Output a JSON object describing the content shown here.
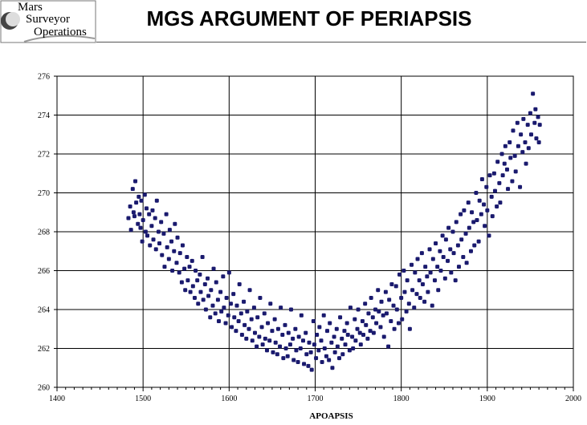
{
  "logo": {
    "line1": "Mars",
    "line2": "Surveyor",
    "line3": "Operations"
  },
  "title": "MGS ARGUMENT OF PERIAPSIS",
  "chart_data": {
    "type": "scatter",
    "title": "MGS ARGUMENT OF PERIAPSIS",
    "xlabel": "APOAPSIS",
    "ylabel": "",
    "xlim": [
      1400,
      2000
    ],
    "ylim": [
      260,
      276
    ],
    "x_ticks": [
      1400,
      1500,
      1600,
      1700,
      1800,
      1900,
      2000
    ],
    "y_ticks": [
      260,
      262,
      264,
      266,
      268,
      270,
      272,
      274,
      276
    ],
    "grid": true,
    "marker_color": "#1a1a6e",
    "points": [
      [
        1483,
        268.7
      ],
      [
        1485,
        269.3
      ],
      [
        1486,
        268.1
      ],
      [
        1488,
        270.2
      ],
      [
        1489,
        269.0
      ],
      [
        1490,
        268.8
      ],
      [
        1491,
        270.6
      ],
      [
        1492,
        269.5
      ],
      [
        1494,
        268.4
      ],
      [
        1495,
        269.8
      ],
      [
        1496,
        268.9
      ],
      [
        1497,
        268.2
      ],
      [
        1498,
        269.6
      ],
      [
        1499,
        267.5
      ],
      [
        1500,
        268.6
      ],
      [
        1502,
        269.9
      ],
      [
        1503,
        268.0
      ],
      [
        1504,
        269.2
      ],
      [
        1505,
        267.8
      ],
      [
        1507,
        268.9
      ],
      [
        1508,
        267.3
      ],
      [
        1510,
        268.3
      ],
      [
        1511,
        269.1
      ],
      [
        1512,
        267.6
      ],
      [
        1514,
        268.7
      ],
      [
        1515,
        267.1
      ],
      [
        1516,
        269.6
      ],
      [
        1518,
        268.0
      ],
      [
        1519,
        267.4
      ],
      [
        1521,
        268.5
      ],
      [
        1522,
        266.8
      ],
      [
        1524,
        267.9
      ],
      [
        1525,
        266.2
      ],
      [
        1527,
        268.9
      ],
      [
        1528,
        267.2
      ],
      [
        1530,
        266.6
      ],
      [
        1531,
        268.1
      ],
      [
        1533,
        267.5
      ],
      [
        1534,
        266.0
      ],
      [
        1536,
        267.0
      ],
      [
        1537,
        268.4
      ],
      [
        1539,
        266.4
      ],
      [
        1540,
        267.7
      ],
      [
        1542,
        265.9
      ],
      [
        1543,
        266.9
      ],
      [
        1545,
        265.4
      ],
      [
        1546,
        267.3
      ],
      [
        1548,
        266.1
      ],
      [
        1549,
        265.0
      ],
      [
        1551,
        266.7
      ],
      [
        1552,
        265.5
      ],
      [
        1554,
        266.2
      ],
      [
        1555,
        264.9
      ],
      [
        1557,
        266.5
      ],
      [
        1558,
        265.2
      ],
      [
        1560,
        264.6
      ],
      [
        1561,
        266.0
      ],
      [
        1563,
        265.5
      ],
      [
        1564,
        264.3
      ],
      [
        1566,
        265.8
      ],
      [
        1567,
        264.9
      ],
      [
        1569,
        266.7
      ],
      [
        1570,
        264.5
      ],
      [
        1572,
        265.3
      ],
      [
        1573,
        264.0
      ],
      [
        1575,
        265.6
      ],
      [
        1576,
        264.7
      ],
      [
        1578,
        263.6
      ],
      [
        1579,
        265.0
      ],
      [
        1581,
        264.2
      ],
      [
        1582,
        266.1
      ],
      [
        1584,
        263.8
      ],
      [
        1585,
        265.4
      ],
      [
        1587,
        264.5
      ],
      [
        1588,
        263.4
      ],
      [
        1590,
        264.9
      ],
      [
        1591,
        263.9
      ],
      [
        1593,
        265.7
      ],
      [
        1594,
        264.1
      ],
      [
        1596,
        263.3
      ],
      [
        1597,
        264.6
      ],
      [
        1599,
        263.7
      ],
      [
        1600,
        265.9
      ],
      [
        1602,
        264.3
      ],
      [
        1603,
        263.1
      ],
      [
        1605,
        264.8
      ],
      [
        1606,
        263.6
      ],
      [
        1608,
        262.9
      ],
      [
        1609,
        264.2
      ],
      [
        1611,
        263.4
      ],
      [
        1612,
        265.3
      ],
      [
        1614,
        263.8
      ],
      [
        1615,
        262.7
      ],
      [
        1617,
        264.4
      ],
      [
        1618,
        263.2
      ],
      [
        1620,
        262.5
      ],
      [
        1621,
        263.9
      ],
      [
        1623,
        263.0
      ],
      [
        1624,
        265.0
      ],
      [
        1626,
        263.5
      ],
      [
        1627,
        262.4
      ],
      [
        1629,
        264.1
      ],
      [
        1630,
        262.8
      ],
      [
        1632,
        262.1
      ],
      [
        1633,
        263.6
      ],
      [
        1635,
        262.6
      ],
      [
        1636,
        264.6
      ],
      [
        1638,
        263.1
      ],
      [
        1639,
        262.2
      ],
      [
        1641,
        263.8
      ],
      [
        1642,
        262.5
      ],
      [
        1644,
        261.9
      ],
      [
        1645,
        263.3
      ],
      [
        1647,
        262.4
      ],
      [
        1648,
        264.3
      ],
      [
        1650,
        262.9
      ],
      [
        1651,
        261.8
      ],
      [
        1653,
        263.5
      ],
      [
        1654,
        262.3
      ],
      [
        1656,
        261.7
      ],
      [
        1657,
        263.0
      ],
      [
        1659,
        262.1
      ],
      [
        1660,
        264.1
      ],
      [
        1662,
        262.7
      ],
      [
        1663,
        261.5
      ],
      [
        1665,
        263.2
      ],
      [
        1666,
        262.0
      ],
      [
        1668,
        261.6
      ],
      [
        1669,
        262.8
      ],
      [
        1671,
        262.2
      ],
      [
        1672,
        264.0
      ],
      [
        1674,
        262.5
      ],
      [
        1675,
        261.4
      ],
      [
        1677,
        263.0
      ],
      [
        1678,
        261.9
      ],
      [
        1680,
        261.3
      ],
      [
        1681,
        262.6
      ],
      [
        1683,
        262.0
      ],
      [
        1684,
        263.7
      ],
      [
        1686,
        262.4
      ],
      [
        1687,
        261.2
      ],
      [
        1689,
        262.8
      ],
      [
        1690,
        261.7
      ],
      [
        1692,
        261.1
      ],
      [
        1693,
        262.3
      ],
      [
        1695,
        261.8
      ],
      [
        1696,
        260.9
      ],
      [
        1698,
        263.4
      ],
      [
        1699,
        262.2
      ],
      [
        1701,
        261.5
      ],
      [
        1702,
        262.7
      ],
      [
        1704,
        261.9
      ],
      [
        1705,
        263.1
      ],
      [
        1707,
        262.4
      ],
      [
        1708,
        261.3
      ],
      [
        1710,
        263.7
      ],
      [
        1711,
        262.0
      ],
      [
        1713,
        261.6
      ],
      [
        1714,
        262.9
      ],
      [
        1716,
        261.4
      ],
      [
        1717,
        263.3
      ],
      [
        1719,
        262.3
      ],
      [
        1720,
        261.0
      ],
      [
        1722,
        262.6
      ],
      [
        1723,
        261.8
      ],
      [
        1725,
        263.0
      ],
      [
        1726,
        262.1
      ],
      [
        1728,
        261.5
      ],
      [
        1729,
        263.6
      ],
      [
        1731,
        262.5
      ],
      [
        1732,
        261.7
      ],
      [
        1734,
        262.9
      ],
      [
        1735,
        262.2
      ],
      [
        1737,
        263.3
      ],
      [
        1738,
        262.7
      ],
      [
        1740,
        261.9
      ],
      [
        1741,
        264.1
      ],
      [
        1743,
        262.6
      ],
      [
        1744,
        262.0
      ],
      [
        1746,
        263.5
      ],
      [
        1747,
        262.4
      ],
      [
        1749,
        263.0
      ],
      [
        1750,
        264.0
      ],
      [
        1752,
        262.8
      ],
      [
        1753,
        262.2
      ],
      [
        1755,
        263.4
      ],
      [
        1756,
        262.7
      ],
      [
        1758,
        264.3
      ],
      [
        1759,
        263.2
      ],
      [
        1761,
        262.5
      ],
      [
        1762,
        263.8
      ],
      [
        1764,
        262.9
      ],
      [
        1765,
        264.6
      ],
      [
        1767,
        263.6
      ],
      [
        1768,
        262.8
      ],
      [
        1770,
        264.0
      ],
      [
        1771,
        263.3
      ],
      [
        1773,
        265.0
      ],
      [
        1774,
        263.9
      ],
      [
        1776,
        263.1
      ],
      [
        1777,
        264.4
      ],
      [
        1779,
        263.7
      ],
      [
        1780,
        262.6
      ],
      [
        1782,
        264.9
      ],
      [
        1783,
        263.8
      ],
      [
        1785,
        262.1
      ],
      [
        1786,
        264.5
      ],
      [
        1788,
        263.4
      ],
      [
        1789,
        265.3
      ],
      [
        1791,
        264.2
      ],
      [
        1792,
        263.0
      ],
      [
        1794,
        265.2
      ],
      [
        1795,
        264.0
      ],
      [
        1797,
        263.3
      ],
      [
        1798,
        265.8
      ],
      [
        1800,
        264.6
      ],
      [
        1801,
        263.5
      ],
      [
        1803,
        266.0
      ],
      [
        1804,
        264.9
      ],
      [
        1806,
        263.9
      ],
      [
        1807,
        265.5
      ],
      [
        1809,
        264.3
      ],
      [
        1810,
        263.0
      ],
      [
        1812,
        266.3
      ],
      [
        1813,
        265.0
      ],
      [
        1815,
        264.1
      ],
      [
        1816,
        265.9
      ],
      [
        1818,
        264.8
      ],
      [
        1819,
        266.6
      ],
      [
        1821,
        265.5
      ],
      [
        1822,
        264.6
      ],
      [
        1824,
        266.9
      ],
      [
        1825,
        265.3
      ],
      [
        1827,
        264.4
      ],
      [
        1828,
        266.2
      ],
      [
        1830,
        265.7
      ],
      [
        1831,
        264.9
      ],
      [
        1833,
        267.1
      ],
      [
        1834,
        265.9
      ],
      [
        1836,
        264.2
      ],
      [
        1837,
        266.6
      ],
      [
        1839,
        265.5
      ],
      [
        1840,
        267.4
      ],
      [
        1842,
        266.2
      ],
      [
        1843,
        265.0
      ],
      [
        1845,
        267.0
      ],
      [
        1846,
        266.0
      ],
      [
        1848,
        267.8
      ],
      [
        1849,
        266.7
      ],
      [
        1851,
        265.6
      ],
      [
        1852,
        267.6
      ],
      [
        1854,
        266.5
      ],
      [
        1855,
        268.2
      ],
      [
        1857,
        267.1
      ],
      [
        1858,
        265.9
      ],
      [
        1860,
        268.0
      ],
      [
        1861,
        266.9
      ],
      [
        1863,
        265.5
      ],
      [
        1864,
        268.5
      ],
      [
        1866,
        267.3
      ],
      [
        1867,
        266.2
      ],
      [
        1869,
        268.9
      ],
      [
        1870,
        267.6
      ],
      [
        1872,
        266.7
      ],
      [
        1873,
        269.1
      ],
      [
        1875,
        267.9
      ],
      [
        1876,
        266.4
      ],
      [
        1878,
        269.5
      ],
      [
        1879,
        268.2
      ],
      [
        1881,
        267.0
      ],
      [
        1882,
        269.0
      ],
      [
        1884,
        268.5
      ],
      [
        1885,
        267.3
      ],
      [
        1887,
        270.0
      ],
      [
        1888,
        268.6
      ],
      [
        1890,
        267.5
      ],
      [
        1891,
        269.6
      ],
      [
        1893,
        268.9
      ],
      [
        1894,
        270.7
      ],
      [
        1896,
        269.4
      ],
      [
        1897,
        268.3
      ],
      [
        1899,
        270.3
      ],
      [
        1900,
        269.1
      ],
      [
        1902,
        267.8
      ],
      [
        1903,
        270.9
      ],
      [
        1905,
        269.8
      ],
      [
        1906,
        268.8
      ],
      [
        1908,
        271.0
      ],
      [
        1909,
        270.1
      ],
      [
        1911,
        269.3
      ],
      [
        1912,
        271.6
      ],
      [
        1914,
        270.5
      ],
      [
        1915,
        269.5
      ],
      [
        1917,
        272.0
      ],
      [
        1918,
        270.9
      ],
      [
        1920,
        271.5
      ],
      [
        1921,
        272.4
      ],
      [
        1923,
        271.2
      ],
      [
        1924,
        270.2
      ],
      [
        1926,
        272.6
      ],
      [
        1927,
        271.8
      ],
      [
        1929,
        270.6
      ],
      [
        1930,
        273.2
      ],
      [
        1932,
        271.9
      ],
      [
        1933,
        271.1
      ],
      [
        1935,
        273.6
      ],
      [
        1936,
        272.4
      ],
      [
        1938,
        270.3
      ],
      [
        1939,
        273.0
      ],
      [
        1941,
        272.1
      ],
      [
        1942,
        273.8
      ],
      [
        1944,
        272.6
      ],
      [
        1945,
        271.5
      ],
      [
        1947,
        273.5
      ],
      [
        1948,
        272.3
      ],
      [
        1950,
        274.1
      ],
      [
        1951,
        273.0
      ],
      [
        1953,
        275.1
      ],
      [
        1955,
        273.6
      ],
      [
        1956,
        274.3
      ],
      [
        1957,
        272.8
      ],
      [
        1959,
        273.9
      ],
      [
        1960,
        272.6
      ],
      [
        1961,
        273.5
      ]
    ]
  }
}
